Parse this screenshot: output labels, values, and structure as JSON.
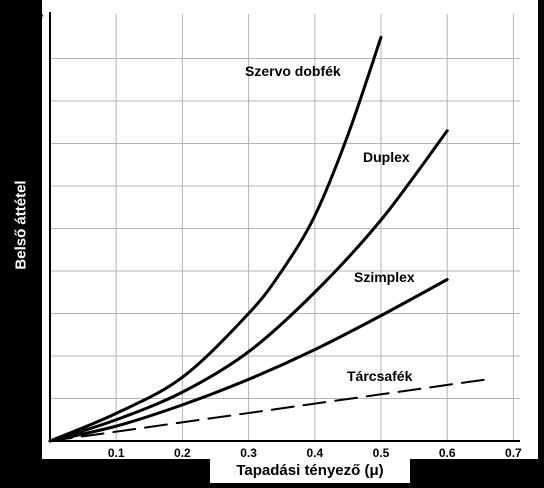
{
  "chart_data": {
    "type": "line",
    "ylabel": "Belső áttétel",
    "xlabel": "Tapadási tényező (μ)",
    "y_axis_symbol": "C*",
    "x_ticks": [
      "0.1",
      "0.2",
      "0.3",
      "0.4",
      "0.5",
      "0.6",
      "0.7"
    ],
    "y_ticks": [
      "1",
      "2",
      "3",
      "4",
      "5",
      "6",
      "7",
      "8",
      "9"
    ],
    "xlim": [
      0,
      0.7
    ],
    "ylim": [
      0,
      10
    ],
    "grid": true,
    "series": [
      {
        "name": "Szervo dobfék",
        "style": "solid",
        "x": [
          0,
          0.1,
          0.2,
          0.3,
          0.35,
          0.4,
          0.45,
          0.5
        ],
        "y": [
          0,
          0.65,
          1.5,
          3.0,
          4.0,
          5.3,
          7.2,
          9.5
        ]
      },
      {
        "name": "Duplex",
        "style": "solid-gap",
        "x": [
          0,
          0.1,
          0.2,
          0.3,
          0.4,
          0.5,
          0.6
        ],
        "y": [
          0,
          0.5,
          1.15,
          2.1,
          3.5,
          5.2,
          7.3
        ]
      },
      {
        "name": "Szimplex",
        "style": "solid-gap",
        "x": [
          0,
          0.1,
          0.2,
          0.3,
          0.4,
          0.5,
          0.6
        ],
        "y": [
          0,
          0.35,
          0.85,
          1.45,
          2.15,
          2.95,
          3.8
        ]
      },
      {
        "name": "Tárcsafék",
        "style": "dashed",
        "x": [
          0,
          0.66
        ],
        "y": [
          0,
          1.45
        ]
      }
    ]
  }
}
